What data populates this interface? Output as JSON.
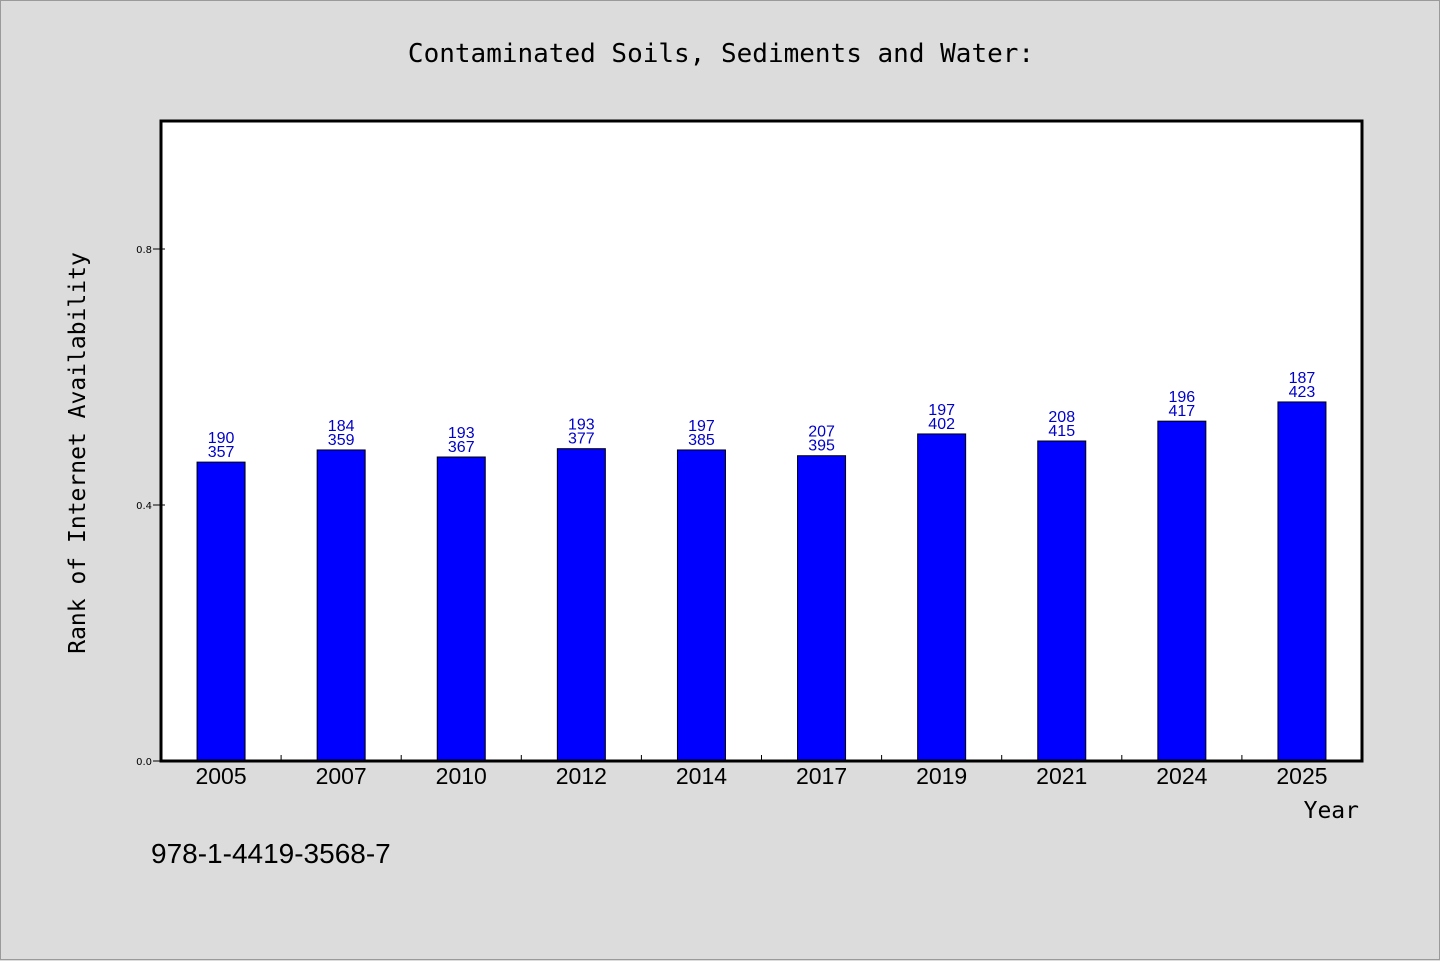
{
  "chart_data": {
    "type": "bar",
    "title": "Contaminated Soils, Sediments and Water:",
    "xlabel": "Year",
    "ylabel": "Rank of Internet Availability",
    "categories": [
      "2005",
      "2007",
      "2010",
      "2012",
      "2014",
      "2017",
      "2019",
      "2021",
      "2024",
      "2025"
    ],
    "values": [
      0.467,
      0.486,
      0.475,
      0.488,
      0.486,
      0.477,
      0.511,
      0.5,
      0.531,
      0.561
    ],
    "label_top": [
      "190",
      "184",
      "193",
      "193",
      "197",
      "207",
      "197",
      "208",
      "196",
      "187"
    ],
    "label_bottom": [
      "357",
      "359",
      "367",
      "377",
      "385",
      "395",
      "402",
      "415",
      "417",
      "423"
    ],
    "ylim": [
      0,
      1.0
    ],
    "yticks": [
      0.0,
      0.4,
      0.8
    ],
    "ytick_labels": [
      "0.0",
      "0.4",
      "0.8"
    ],
    "bar_color": "#0000ff",
    "label_color": "#0000cc",
    "grid": false,
    "legend": "none"
  },
  "footer": {
    "isbn": "978-1-4419-3568-7"
  }
}
